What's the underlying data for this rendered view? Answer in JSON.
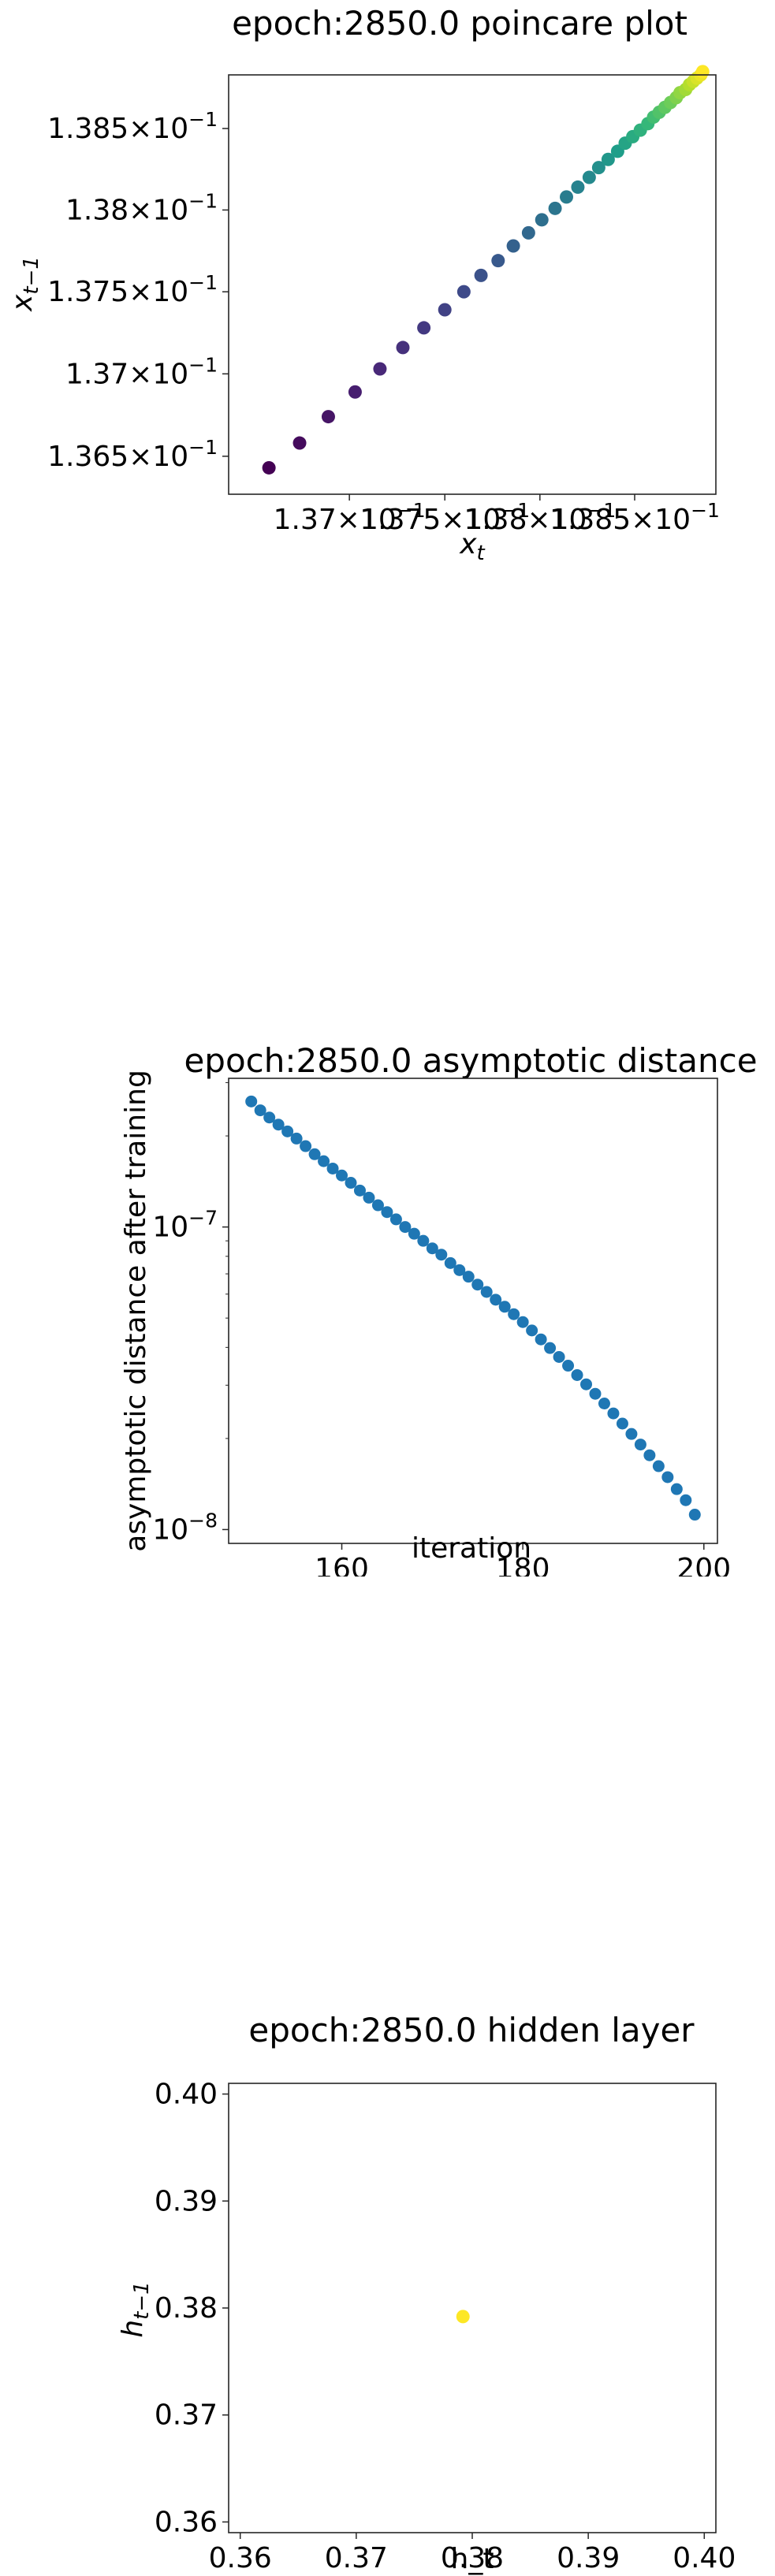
{
  "chart_data": [
    {
      "type": "scatter",
      "title": "epoch:2850.0 poincare plot",
      "xlabel": "x_t",
      "ylabel": "x_{t-1}",
      "xscale": "log",
      "yscale": "log",
      "xlim": [
        0.13637,
        0.13893
      ],
      "ylim": [
        0.13627,
        0.13883
      ],
      "colormap": "viridis",
      "x_ticks": [
        {
          "value": 0.137,
          "mantissa": "1.37",
          "exp": "−1"
        },
        {
          "value": 0.1375,
          "mantissa": "1.375",
          "exp": "−1"
        },
        {
          "value": 0.138,
          "mantissa": "1.38",
          "exp": "−1"
        },
        {
          "value": 0.1385,
          "mantissa": "1.385",
          "exp": "−1"
        }
      ],
      "y_ticks": [
        {
          "value": 0.1365,
          "mantissa": "1.365",
          "exp": "−1"
        },
        {
          "value": 0.137,
          "mantissa": "1.37",
          "exp": "−1"
        },
        {
          "value": 0.1375,
          "mantissa": "1.375",
          "exp": "−1"
        },
        {
          "value": 0.138,
          "mantissa": "1.38",
          "exp": "−1"
        },
        {
          "value": 0.1385,
          "mantissa": "1.385",
          "exp": "−1"
        }
      ],
      "x": [
        0.13658,
        0.13674,
        0.13689,
        0.13703,
        0.13716,
        0.13728,
        0.13739,
        0.1375,
        0.1376,
        0.13769,
        0.13778,
        0.13786,
        0.13794,
        0.13801,
        0.13808,
        0.13814,
        0.1382,
        0.13826,
        0.13831,
        0.13836,
        0.13841,
        0.13845,
        0.13849,
        0.13853,
        0.13857,
        0.1386,
        0.13863,
        0.13866,
        0.13869,
        0.13872,
        0.13874,
        0.13877,
        0.13879,
        0.13881,
        0.13883,
        0.13885,
        0.13886
      ],
      "y": [
        0.13643,
        0.13658,
        0.13674,
        0.13689,
        0.13703,
        0.13716,
        0.13728,
        0.13739,
        0.1375,
        0.1376,
        0.13769,
        0.13778,
        0.13786,
        0.13794,
        0.13801,
        0.13808,
        0.13814,
        0.1382,
        0.13826,
        0.13831,
        0.13836,
        0.13841,
        0.13845,
        0.13849,
        0.13853,
        0.13857,
        0.1386,
        0.13863,
        0.13866,
        0.13869,
        0.13872,
        0.13874,
        0.13877,
        0.13879,
        0.13881,
        0.13883,
        0.13885
      ]
    },
    {
      "type": "scatter",
      "title": "epoch:2850.0 asymptotic distance",
      "xlabel": "iteration",
      "ylabel": "asymptotic distance after training",
      "yscale": "log",
      "xlim": [
        147.5,
        201.5
      ],
      "ylim": [
        9e-09,
        3.1e-07
      ],
      "color": "#1f77b4",
      "x_ticks": [
        {
          "value": 160,
          "label": "160"
        },
        {
          "value": 180,
          "label": "180"
        },
        {
          "value": 200,
          "label": "200"
        }
      ],
      "y_ticks": [
        {
          "value": 1e-08,
          "base": "10",
          "exp": "−8"
        },
        {
          "value": 1e-07,
          "base": "10",
          "exp": "−7"
        }
      ],
      "x": [
        150,
        151,
        152,
        153,
        154,
        155,
        156,
        157,
        158,
        159,
        160,
        161,
        162,
        163,
        164,
        165,
        166,
        167,
        168,
        169,
        170,
        171,
        172,
        173,
        174,
        175,
        176,
        177,
        178,
        179,
        180,
        181,
        182,
        183,
        184,
        185,
        186,
        187,
        188,
        189,
        190,
        191,
        192,
        193,
        194,
        195,
        196,
        197,
        198,
        199
      ],
      "y": [
        2.6e-07,
        2.43e-07,
        2.3e-07,
        2.18e-07,
        2.07e-07,
        1.96e-07,
        1.85e-07,
        1.74e-07,
        1.65e-07,
        1.56e-07,
        1.48e-07,
        1.4e-07,
        1.32e-07,
        1.25e-07,
        1.18e-07,
        1.12e-07,
        1.06e-07,
        1e-07,
        9.5e-08,
        9e-08,
        8.5e-08,
        8.1e-08,
        7.6e-08,
        7.2e-08,
        6.85e-08,
        6.45e-08,
        6.1e-08,
        5.75e-08,
        5.45e-08,
        5.15e-08,
        4.85e-08,
        4.55e-08,
        4.25e-08,
        3.98e-08,
        3.72e-08,
        3.48e-08,
        3.24e-08,
        3.02e-08,
        2.81e-08,
        2.61e-08,
        2.42e-08,
        2.24e-08,
        2.07e-08,
        1.91e-08,
        1.76e-08,
        1.62e-08,
        1.49e-08,
        1.36e-08,
        1.25e-08,
        1.12e-08
      ]
    },
    {
      "type": "scatter",
      "title": "epoch:2850.0 hidden layer",
      "xlabel": "h_t",
      "ylabel": "h_{t-1}",
      "xlim": [
        0.359,
        0.401
      ],
      "ylim": [
        0.359,
        0.401
      ],
      "color": "#fde725",
      "x_ticks": [
        {
          "value": 0.36,
          "label": "0.36"
        },
        {
          "value": 0.37,
          "label": "0.37"
        },
        {
          "value": 0.38,
          "label": "0.38"
        },
        {
          "value": 0.39,
          "label": "0.39"
        },
        {
          "value": 0.4,
          "label": "0.40"
        }
      ],
      "y_ticks": [
        {
          "value": 0.36,
          "label": "0.36"
        },
        {
          "value": 0.37,
          "label": "0.37"
        },
        {
          "value": 0.38,
          "label": "0.38"
        },
        {
          "value": 0.39,
          "label": "0.39"
        },
        {
          "value": 0.4,
          "label": "0.40"
        }
      ],
      "x": [
        0.3792
      ],
      "y": [
        0.3792
      ]
    }
  ]
}
